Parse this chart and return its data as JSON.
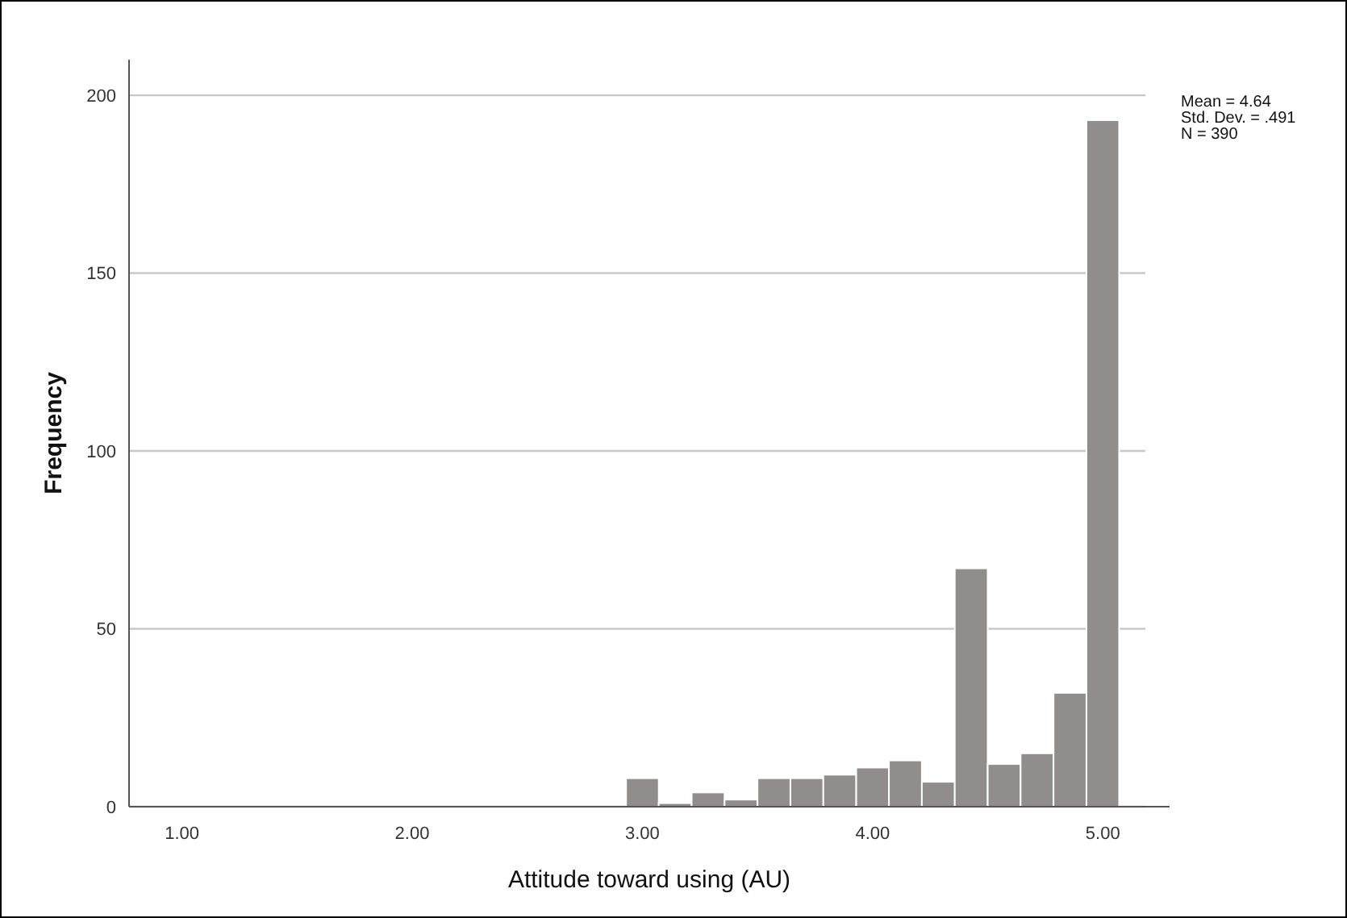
{
  "chart_data": {
    "type": "histogram",
    "xlabel": "Attitude toward using (AU)",
    "ylabel": "Frequency",
    "bins": [
      2.929,
      3.071,
      3.214,
      3.357,
      3.5,
      3.643,
      3.786,
      3.929,
      4.071,
      4.214,
      4.357,
      4.5,
      4.643,
      4.786,
      4.929,
      5.071
    ],
    "values": [
      8,
      1,
      4,
      2,
      8,
      8,
      9,
      11,
      13,
      7,
      67,
      12,
      15,
      32,
      193
    ],
    "color": "#918d8c",
    "xlim": [
      0.77,
      5.29
    ],
    "xticks": [
      {
        "value": 1,
        "label": "1.00"
      },
      {
        "value": 2,
        "label": "2.00"
      },
      {
        "value": 3,
        "label": "3.00"
      },
      {
        "value": 4,
        "label": "4.00"
      },
      {
        "value": 5,
        "label": "5.00"
      }
    ],
    "ylim": [
      0,
      210
    ],
    "yticks": [
      0,
      50,
      100,
      150,
      200
    ],
    "grid": "y",
    "annotations": [
      "Mean = 4.64",
      "Std. Dev. = .491",
      "N = 390"
    ]
  }
}
